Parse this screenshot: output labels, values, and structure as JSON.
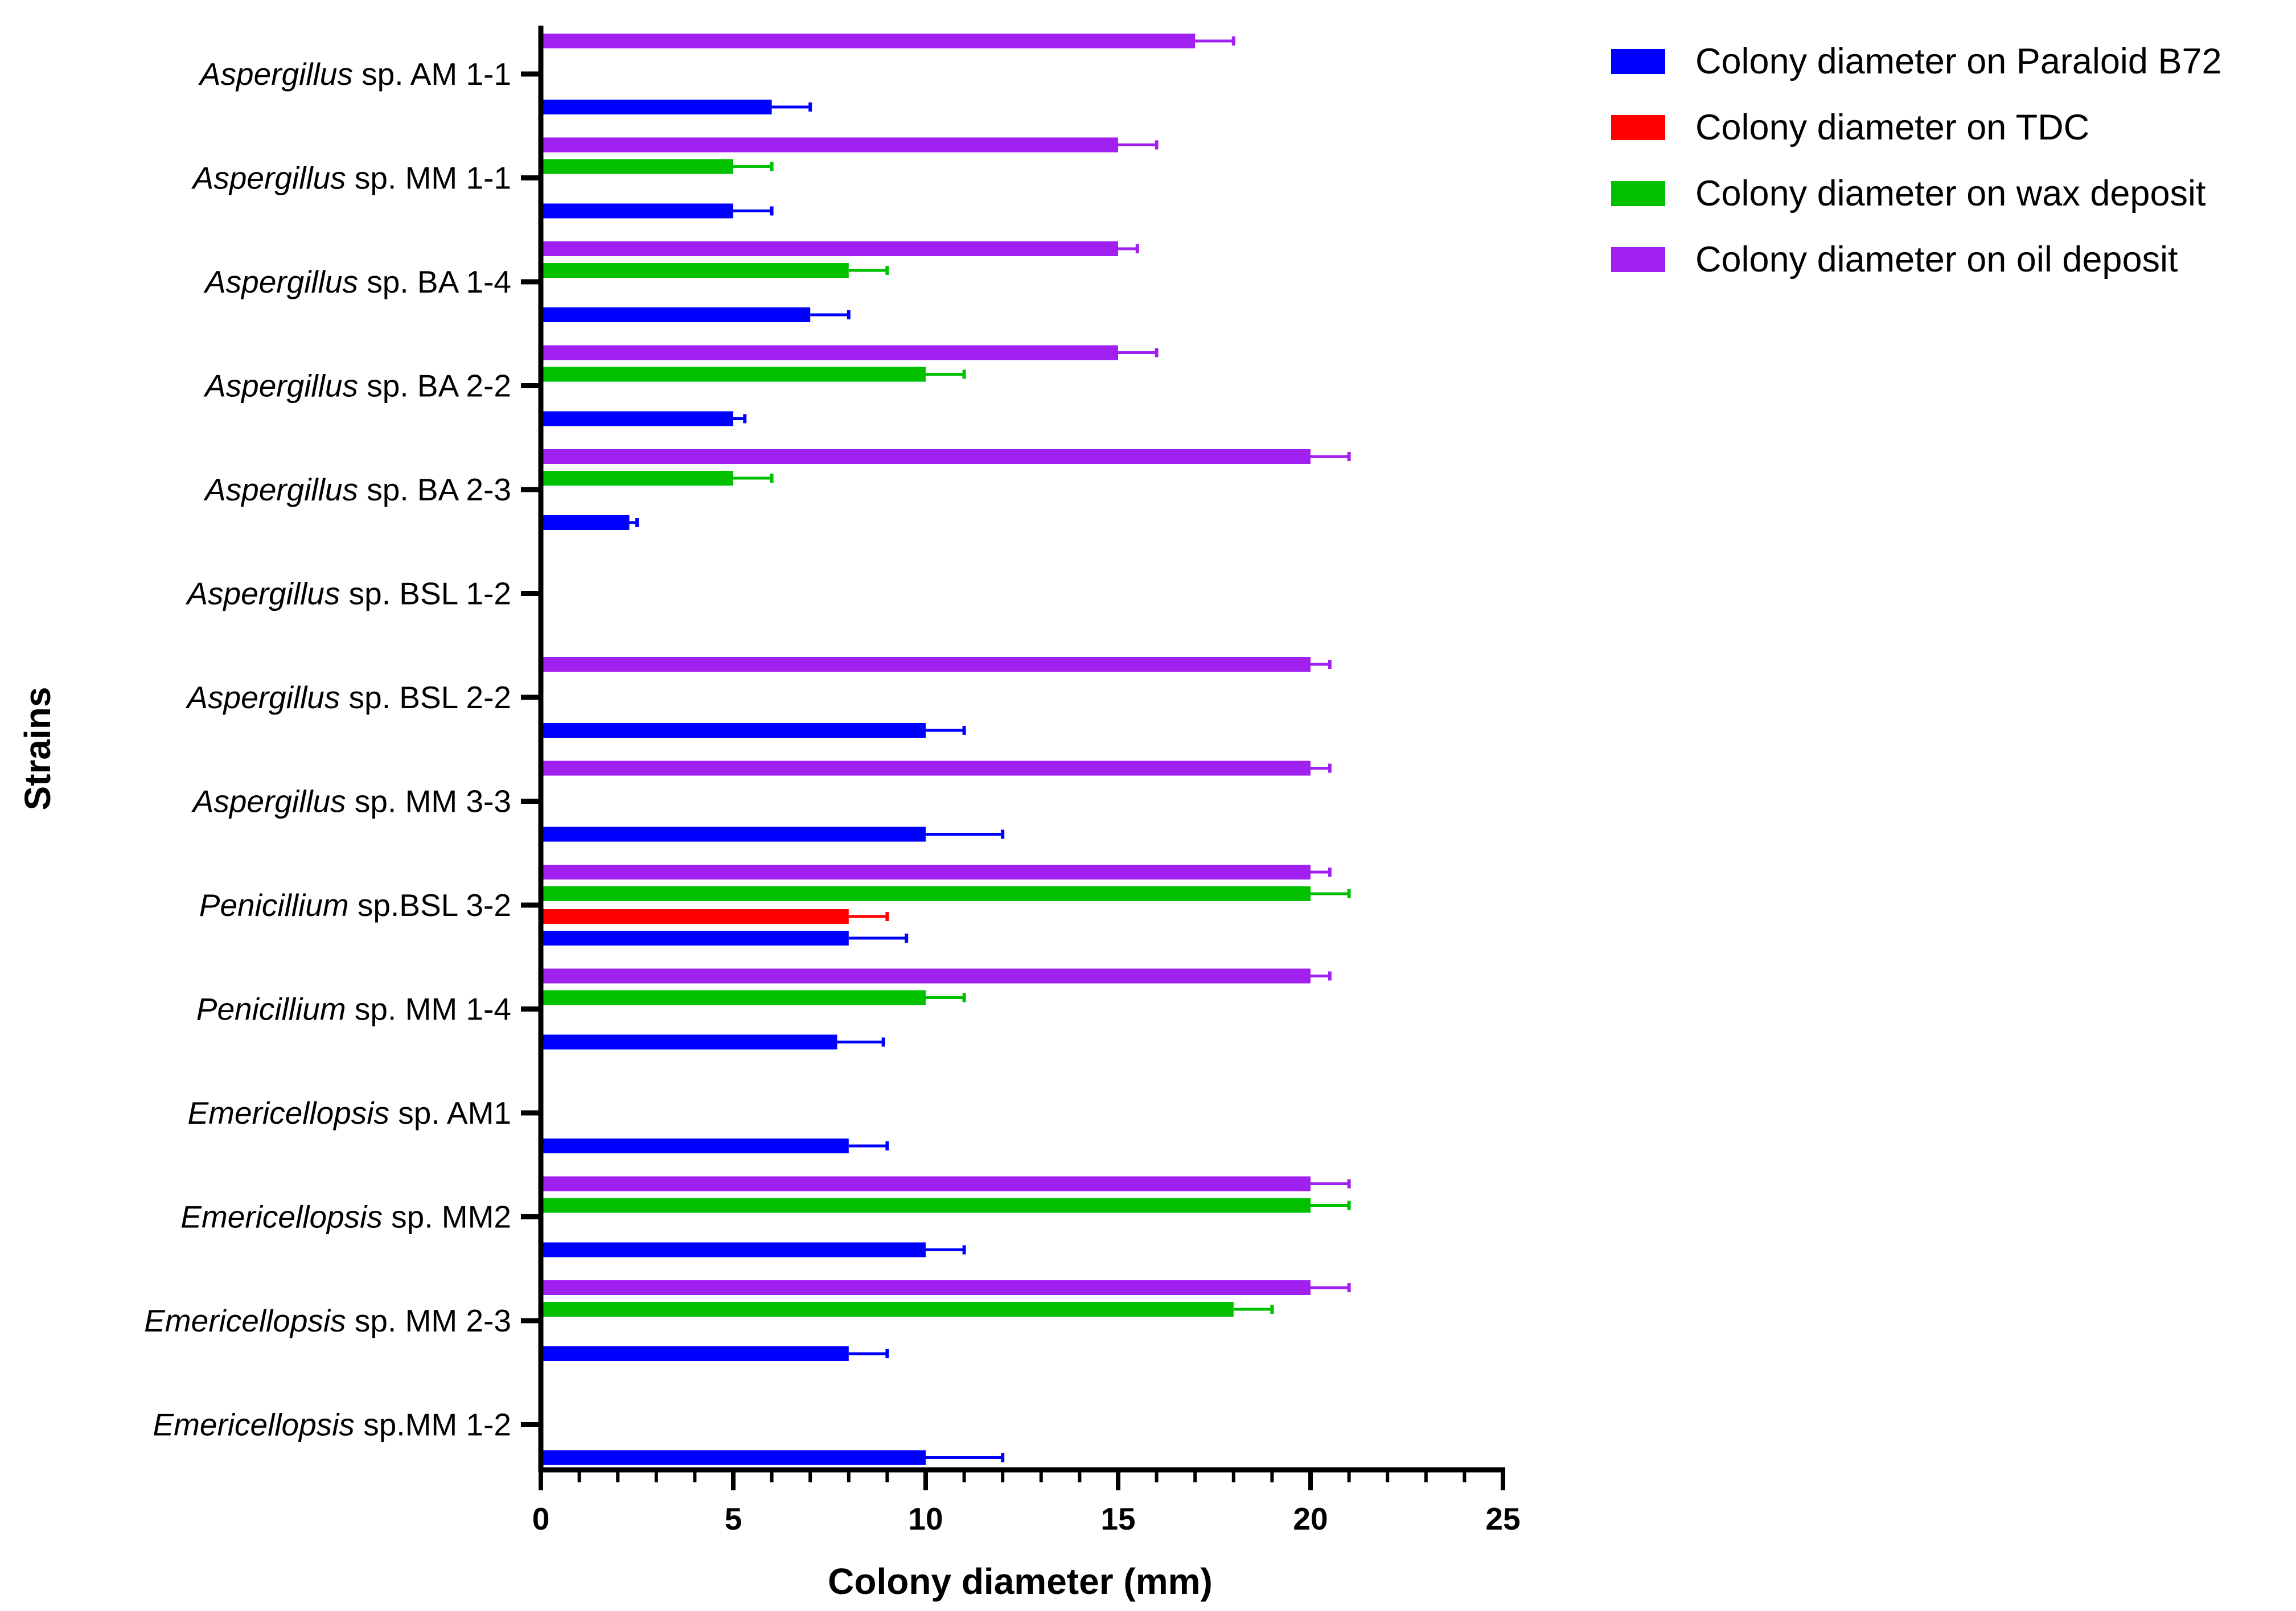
{
  "chart_data": {
    "type": "bar",
    "orientation": "horizontal",
    "title": "",
    "xlabel": "Colony diameter (mm)",
    "ylabel": "Strains",
    "xlim": [
      0,
      25
    ],
    "x_ticks": [
      "0",
      "5",
      "10",
      "15",
      "20",
      "25"
    ],
    "legend_position": "top-right",
    "categories": [
      {
        "genus": "Aspergillus",
        "rest": " sp. AM 1-1"
      },
      {
        "genus": "Aspergillus",
        "rest": " sp. MM 1-1"
      },
      {
        "genus": "Aspergillus",
        "rest": " sp. BA 1-4"
      },
      {
        "genus": "Aspergillus",
        "rest": " sp. BA 2-2"
      },
      {
        "genus": "Aspergillus",
        "rest": " sp. BA 2-3"
      },
      {
        "genus": "Aspergillus",
        "rest": " sp. BSL 1-2"
      },
      {
        "genus": "Aspergillus",
        "rest": " sp. BSL 2-2"
      },
      {
        "genus": "Aspergillus",
        "rest": " sp. MM 3-3"
      },
      {
        "genus": "Penicillium",
        "rest": " sp.BSL 3-2"
      },
      {
        "genus": "Penicillium",
        "rest": " sp. MM 1-4"
      },
      {
        "genus": "Emericellopsis",
        "rest": " sp. AM1"
      },
      {
        "genus": "Emericellopsis",
        "rest": " sp. MM2"
      },
      {
        "genus": "Emericellopsis",
        "rest": " sp. MM 2-3"
      },
      {
        "genus": "Emericellopsis",
        "rest": " sp.MM 1-2"
      }
    ],
    "series": [
      {
        "name": "Colony diameter on Paraloid B72",
        "color": "#0000ff",
        "values": [
          6,
          5,
          7,
          5,
          2.3,
          0,
          10,
          10,
          8,
          7.7,
          8,
          10,
          8,
          10
        ],
        "errors": [
          1,
          1,
          1,
          0.3,
          0.2,
          0,
          1,
          2,
          1.5,
          1.2,
          1,
          1,
          1,
          2
        ]
      },
      {
        "name": "Colony diameter on TDC",
        "color": "#ff0000",
        "values": [
          0,
          0,
          0,
          0,
          0,
          0,
          0,
          0,
          8,
          0,
          0,
          0,
          0,
          0
        ],
        "errors": [
          0,
          0,
          0,
          0,
          0,
          0,
          0,
          0,
          1,
          0,
          0,
          0,
          0,
          0
        ]
      },
      {
        "name": "Colony diameter on wax deposit",
        "color": "#00c000",
        "values": [
          0,
          5,
          8,
          10,
          5,
          0,
          0,
          0,
          20,
          10,
          0,
          20,
          18,
          0
        ],
        "errors": [
          0,
          1,
          1,
          1,
          1,
          0,
          0,
          0,
          1,
          1,
          0,
          1,
          1,
          0
        ]
      },
      {
        "name": "Colony diameter on oil deposit",
        "color": "#a020f0",
        "values": [
          17,
          15,
          15,
          15,
          20,
          0,
          20,
          20,
          20,
          20,
          0,
          20,
          20,
          0
        ],
        "errors": [
          1,
          1,
          0.5,
          1,
          1,
          0,
          0.5,
          0.5,
          0.5,
          0.5,
          0,
          1,
          1,
          0
        ]
      }
    ]
  }
}
